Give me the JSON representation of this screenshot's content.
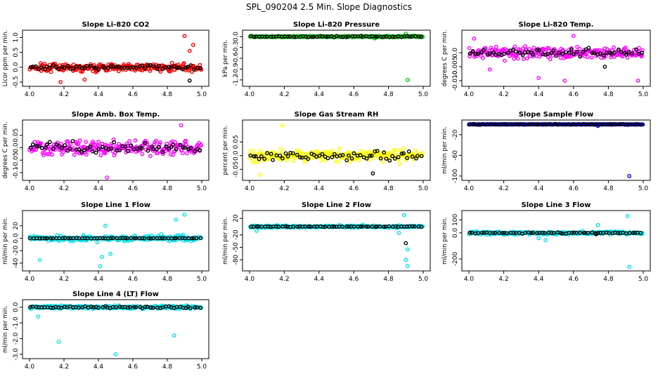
{
  "figure_title": "SPL_090204  2.5 Min. Slope Diagnostics",
  "chart_data": [
    {
      "type": "scatter",
      "title": "Slope Li-820 CO2",
      "ylabel": "Licor ppm per min.",
      "xlim": [
        4.0,
        5.0
      ],
      "ylim": [
        -0.55,
        1.15
      ],
      "yticks": [
        -0.5,
        0.0,
        0.5,
        1.0
      ],
      "xticks": [
        4.0,
        4.2,
        4.4,
        4.6,
        4.8,
        5.0
      ],
      "series": [
        {
          "color": "#ff0000",
          "center": 0.0,
          "spread": 0.13,
          "outliers": [
            [
              4.9,
              1.05
            ],
            [
              4.95,
              0.75
            ],
            [
              4.93,
              0.55
            ],
            [
              4.18,
              -0.5
            ],
            [
              4.32,
              -0.42
            ]
          ]
        },
        {
          "color": "#000000",
          "center": 0.0,
          "spread": 0.08,
          "outliers": [
            [
              4.93,
              -0.45
            ]
          ]
        }
      ]
    },
    {
      "type": "scatter",
      "title": "Slope Li-820 Pressure",
      "ylabel": "kPa per min.",
      "xlim": [
        4.0,
        5.0
      ],
      "ylim": [
        -1.3,
        0.1
      ],
      "yticks": [
        -1.2,
        -0.9,
        -0.6,
        -0.3,
        0.0
      ],
      "xticks": [
        4.0,
        4.2,
        4.4,
        4.6,
        4.8,
        5.0
      ],
      "series": [
        {
          "color": "#00cc00",
          "center": 0.0,
          "spread": 0.02,
          "outliers": [
            [
              4.91,
              -1.2
            ],
            [
              4.9,
              0.08
            ],
            [
              4.72,
              -0.05
            ]
          ]
        },
        {
          "color": "#000000",
          "center": 0.0,
          "spread": 0.015,
          "outliers": []
        }
      ]
    },
    {
      "type": "scatter",
      "title": "Slope Li-820 Temp.",
      "ylabel": "degrees C per min.",
      "xlim": [
        4.0,
        5.0
      ],
      "ylim": [
        -0.011,
        0.007
      ],
      "yticks": [
        -0.01,
        -0.005,
        0.0
      ],
      "xticks": [
        4.0,
        4.2,
        4.4,
        4.6,
        4.8,
        5.0
      ],
      "series": [
        {
          "color": "#ff00ff",
          "center": 0.0,
          "spread": 0.002,
          "outliers": [
            [
              4.12,
              -0.006
            ],
            [
              4.4,
              -0.009
            ],
            [
              4.55,
              -0.01
            ],
            [
              4.03,
              0.005
            ],
            [
              4.97,
              -0.01
            ],
            [
              4.6,
              0.006
            ]
          ]
        },
        {
          "color": "#000000",
          "center": 0.0,
          "spread": 0.0012,
          "outliers": [
            [
              4.78,
              -0.005
            ]
          ]
        }
      ]
    },
    {
      "type": "scatter",
      "title": "Slope Amb. Box Temp.",
      "ylabel": "degrees C per min.",
      "xlim": [
        4.0,
        5.0
      ],
      "ylim": [
        -0.12,
        0.1
      ],
      "yticks": [
        -0.1,
        -0.05,
        0.0,
        0.05
      ],
      "xticks": [
        4.0,
        4.2,
        4.4,
        4.6,
        4.8,
        5.0
      ],
      "series": [
        {
          "color": "#ff00ff",
          "center": 0.0,
          "spread": 0.028,
          "outliers": [
            [
              4.45,
              -0.12
            ],
            [
              4.88,
              0.09
            ]
          ]
        },
        {
          "color": "#000000",
          "center": 0.0,
          "spread": 0.02,
          "outliers": []
        }
      ]
    },
    {
      "type": "scatter",
      "title": "Slope Gas Stream RH",
      "ylabel": "percent per min.",
      "xlim": [
        4.0,
        5.0
      ],
      "ylim": [
        -0.08,
        0.12
      ],
      "yticks": [
        -0.05,
        0.0,
        0.05
      ],
      "xticks": [
        4.0,
        4.2,
        4.4,
        4.6,
        4.8,
        5.0
      ],
      "series": [
        {
          "color": "#ffff00",
          "center": 0.0,
          "spread": 0.02,
          "outliers": [
            [
              4.19,
              0.11
            ],
            [
              4.06,
              -0.07
            ]
          ]
        },
        {
          "color": "#000000",
          "center": 0.0,
          "spread": 0.016,
          "outliers": [
            [
              4.71,
              -0.065
            ]
          ]
        }
      ]
    },
    {
      "type": "scatter",
      "title": "Slope Sample Flow",
      "ylabel": "ml/min per min.",
      "xlim": [
        4.0,
        5.0
      ],
      "ylim": [
        -103,
        3
      ],
      "yticks": [
        -100,
        -60,
        -20
      ],
      "xticks": [
        4.0,
        4.2,
        4.4,
        4.6,
        4.8,
        5.0
      ],
      "series": [
        {
          "color": "#0000cc",
          "center": 0.0,
          "spread": 0.6,
          "outliers": [
            [
              4.92,
              -100
            ],
            [
              4.74,
              -3
            ]
          ]
        },
        {
          "color": "#000000",
          "center": 0.0,
          "spread": 0.4,
          "outliers": []
        }
      ]
    },
    {
      "type": "scatter",
      "title": "Slope Line 1 Flow",
      "ylabel": "ml/min per min.",
      "xlim": [
        4.0,
        5.0
      ],
      "ylim": [
        -48,
        40
      ],
      "yticks": [
        -40,
        -20,
        0,
        20
      ],
      "xticks": [
        4.0,
        4.2,
        4.4,
        4.6,
        4.8,
        5.0
      ],
      "series": [
        {
          "color": "#00e5ee",
          "center": 0.0,
          "spread": 4,
          "outliers": [
            [
              4.41,
              -45
            ],
            [
              4.42,
              -30
            ],
            [
              4.47,
              -25
            ],
            [
              4.9,
              38
            ],
            [
              4.85,
              30
            ],
            [
              4.06,
              -35
            ],
            [
              4.44,
              20
            ]
          ]
        },
        {
          "color": "#000000",
          "center": 0.0,
          "spread": 0.4,
          "outliers": []
        }
      ]
    },
    {
      "type": "scatter",
      "title": "Slope Line 2 Flow",
      "ylabel": "ml/min per min.",
      "xlim": [
        4.0,
        5.0
      ],
      "ylim": [
        -100,
        32
      ],
      "yticks": [
        -80,
        -50,
        -20,
        20
      ],
      "xticks": [
        4.0,
        4.2,
        4.4,
        4.6,
        4.8,
        5.0
      ],
      "series": [
        {
          "color": "#00e5ee",
          "center": 0.0,
          "spread": 3,
          "outliers": [
            [
              4.91,
              -95
            ],
            [
              4.9,
              -80
            ],
            [
              4.91,
              -55
            ],
            [
              4.89,
              28
            ],
            [
              4.04,
              -10
            ],
            [
              4.86,
              -15
            ]
          ]
        },
        {
          "color": "#000000",
          "center": 0.0,
          "spread": 0.8,
          "outliers": [
            [
              4.9,
              -40
            ]
          ]
        }
      ]
    },
    {
      "type": "scatter",
      "title": "Slope Line 3 Flow",
      "ylabel": "ml/min per min.",
      "xlim": [
        4.0,
        5.0
      ],
      "ylim": [
        -270,
        150
      ],
      "yticks": [
        -200,
        0,
        100
      ],
      "xticks": [
        4.0,
        4.2,
        4.4,
        4.6,
        4.8,
        5.0
      ],
      "series": [
        {
          "color": "#00e5ee",
          "center": 0.0,
          "spread": 12,
          "outliers": [
            [
              4.92,
              -260
            ],
            [
              4.91,
              130
            ],
            [
              4.74,
              60
            ],
            [
              4.44,
              -55
            ],
            [
              4.4,
              -40
            ]
          ]
        },
        {
          "color": "#000000",
          "center": 0.0,
          "spread": 4,
          "outliers": [
            [
              4.73,
              -10
            ]
          ]
        }
      ]
    },
    {
      "type": "scatter",
      "title": "Slope Line 4 (LT) Flow",
      "ylabel": "ml/min per min.",
      "xlim": [
        4.0,
        5.0
      ],
      "ylim": [
        -3.1,
        0.3
      ],
      "yticks": [
        -3.0,
        -2.0,
        -1.0,
        0.0
      ],
      "xticks": [
        4.0,
        4.2,
        4.4,
        4.6,
        4.8,
        5.0
      ],
      "series": [
        {
          "color": "#00e5ee",
          "center": 0.0,
          "spread": 0.1,
          "outliers": [
            [
              4.5,
              -3.0
            ],
            [
              4.17,
              -2.2
            ],
            [
              4.84,
              -1.8
            ],
            [
              4.05,
              -0.6
            ]
          ]
        },
        {
          "color": "#000000",
          "center": 0.0,
          "spread": 0.06,
          "outliers": []
        }
      ]
    }
  ]
}
